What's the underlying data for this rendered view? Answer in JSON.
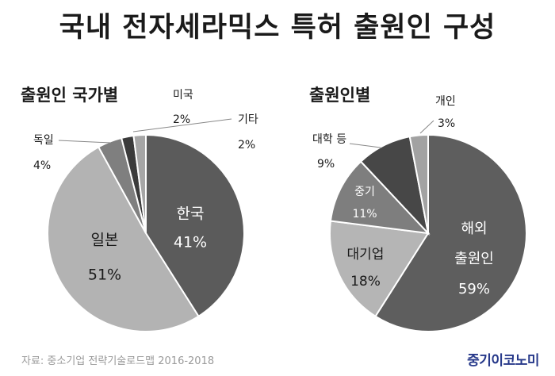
{
  "page": {
    "title": "국내 전자세라믹스 특허 출원인 구성",
    "source": "자료: 중소기업 전략기술로드맵 2016-2018",
    "brand": "중기이코노미"
  },
  "chart_data": [
    {
      "type": "pie",
      "title": "출원인 국가별",
      "unit": "%",
      "slices": [
        {
          "label": "한국",
          "value": 41,
          "color": "#5b5b5b"
        },
        {
          "label": "일본",
          "value": 51,
          "color": "#b3b3b3"
        },
        {
          "label": "독일",
          "value": 4,
          "color": "#7f7f7f"
        },
        {
          "label": "미국",
          "value": 2,
          "color": "#3b3b3b"
        },
        {
          "label": "기타",
          "value": 2,
          "color": "#a6a6a6"
        }
      ]
    },
    {
      "type": "pie",
      "title": "출원인별",
      "unit": "%",
      "slices": [
        {
          "label": "해외 출원인",
          "value": 59,
          "color": "#5e5e5e"
        },
        {
          "label": "대기업",
          "value": 18,
          "color": "#b5b5b5"
        },
        {
          "label": "중기",
          "value": 11,
          "color": "#7e7e7e"
        },
        {
          "label": "대학 등",
          "value": 9,
          "color": "#474747"
        },
        {
          "label": "개인",
          "value": 3,
          "color": "#a2a2a2"
        }
      ]
    }
  ]
}
